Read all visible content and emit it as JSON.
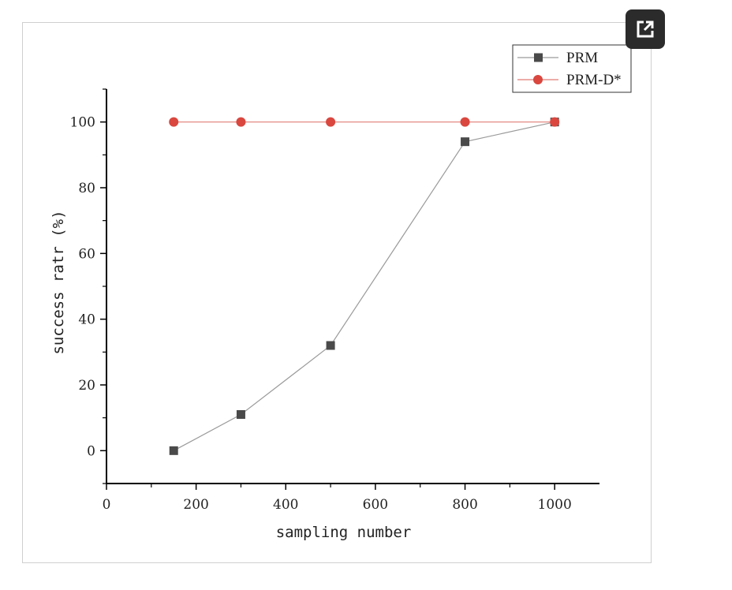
{
  "ui": {
    "expand_icon": "external-link-icon"
  },
  "chart_data": {
    "type": "line",
    "title": "",
    "xlabel": "sampling number",
    "ylabel": "success ratr (%)",
    "xlim": [
      0,
      1100
    ],
    "ylim": [
      -10,
      110
    ],
    "xticks": [
      0,
      200,
      400,
      600,
      800,
      1000
    ],
    "yticks": [
      0,
      20,
      40,
      60,
      80,
      100
    ],
    "grid": false,
    "legend_position": "top-right",
    "x": [
      150,
      300,
      500,
      800,
      1000
    ],
    "series": [
      {
        "name": "PRM",
        "values": [
          0,
          11,
          32,
          94,
          100
        ],
        "color": "#4a4a4a",
        "line_color": "#9a9a9a",
        "marker": "square"
      },
      {
        "name": "PRM-D*",
        "values": [
          100,
          100,
          100,
          100,
          100
        ],
        "color": "#d9473f",
        "line_color": "#e07b76",
        "marker": "circle"
      }
    ]
  }
}
